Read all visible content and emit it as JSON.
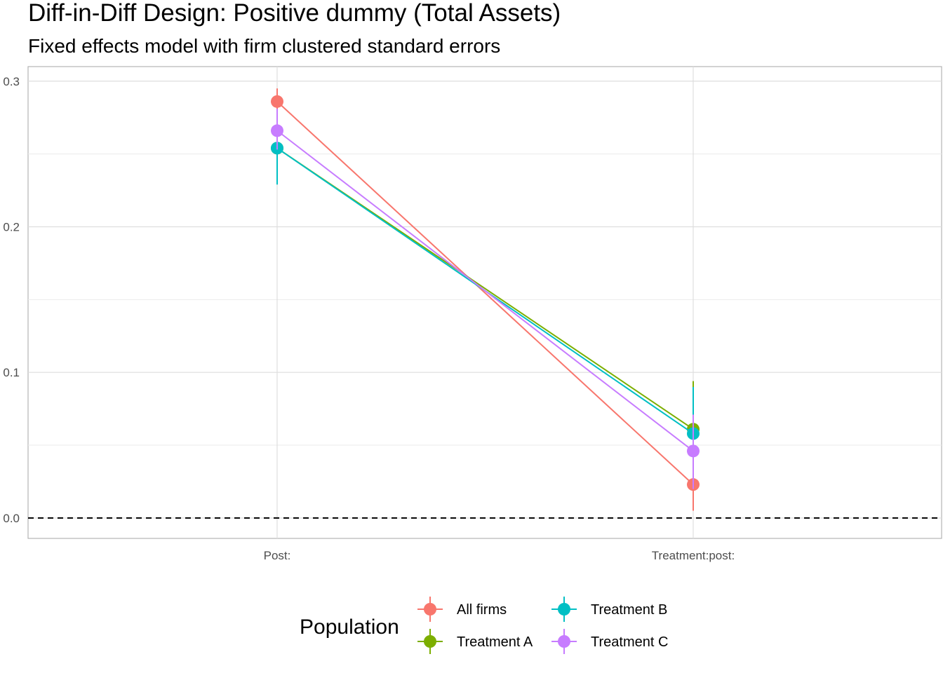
{
  "chart_data": {
    "type": "line",
    "title": "Diff-in-Diff Design: Positive dummy (Total Assets)",
    "subtitle": "Fixed effects model with firm clustered standard errors",
    "xlabel": "",
    "ylabel": "",
    "categories": [
      "Post:",
      "Treatment:post:"
    ],
    "ylim": [
      -0.014,
      0.31
    ],
    "yticks": [
      0.0,
      0.1,
      0.2,
      0.3
    ],
    "ytick_labels": [
      "0.0",
      "0.1",
      "0.2",
      "0.3"
    ],
    "grid": true,
    "reference_line": {
      "y": 0,
      "style": "dashed",
      "color": "#000000"
    },
    "legend": {
      "title": "Population",
      "placement": "bottom"
    },
    "series": [
      {
        "name": "All firms",
        "color": "#F8766D",
        "values": [
          0.286,
          0.023
        ],
        "lower": [
          0.278,
          0.005
        ],
        "upper": [
          0.295,
          0.041
        ]
      },
      {
        "name": "Treatment A",
        "color": "#7CAE00",
        "values": [
          0.254,
          0.061
        ],
        "lower": [
          0.231,
          0.03
        ],
        "upper": [
          0.277,
          0.094
        ]
      },
      {
        "name": "Treatment B",
        "color": "#00BFC4",
        "values": [
          0.254,
          0.058
        ],
        "lower": [
          0.229,
          0.026
        ],
        "upper": [
          0.279,
          0.09
        ]
      },
      {
        "name": "Treatment C",
        "color": "#C77CFF",
        "values": [
          0.266,
          0.046
        ],
        "lower": [
          0.253,
          0.02
        ],
        "upper": [
          0.281,
          0.071
        ]
      }
    ]
  }
}
